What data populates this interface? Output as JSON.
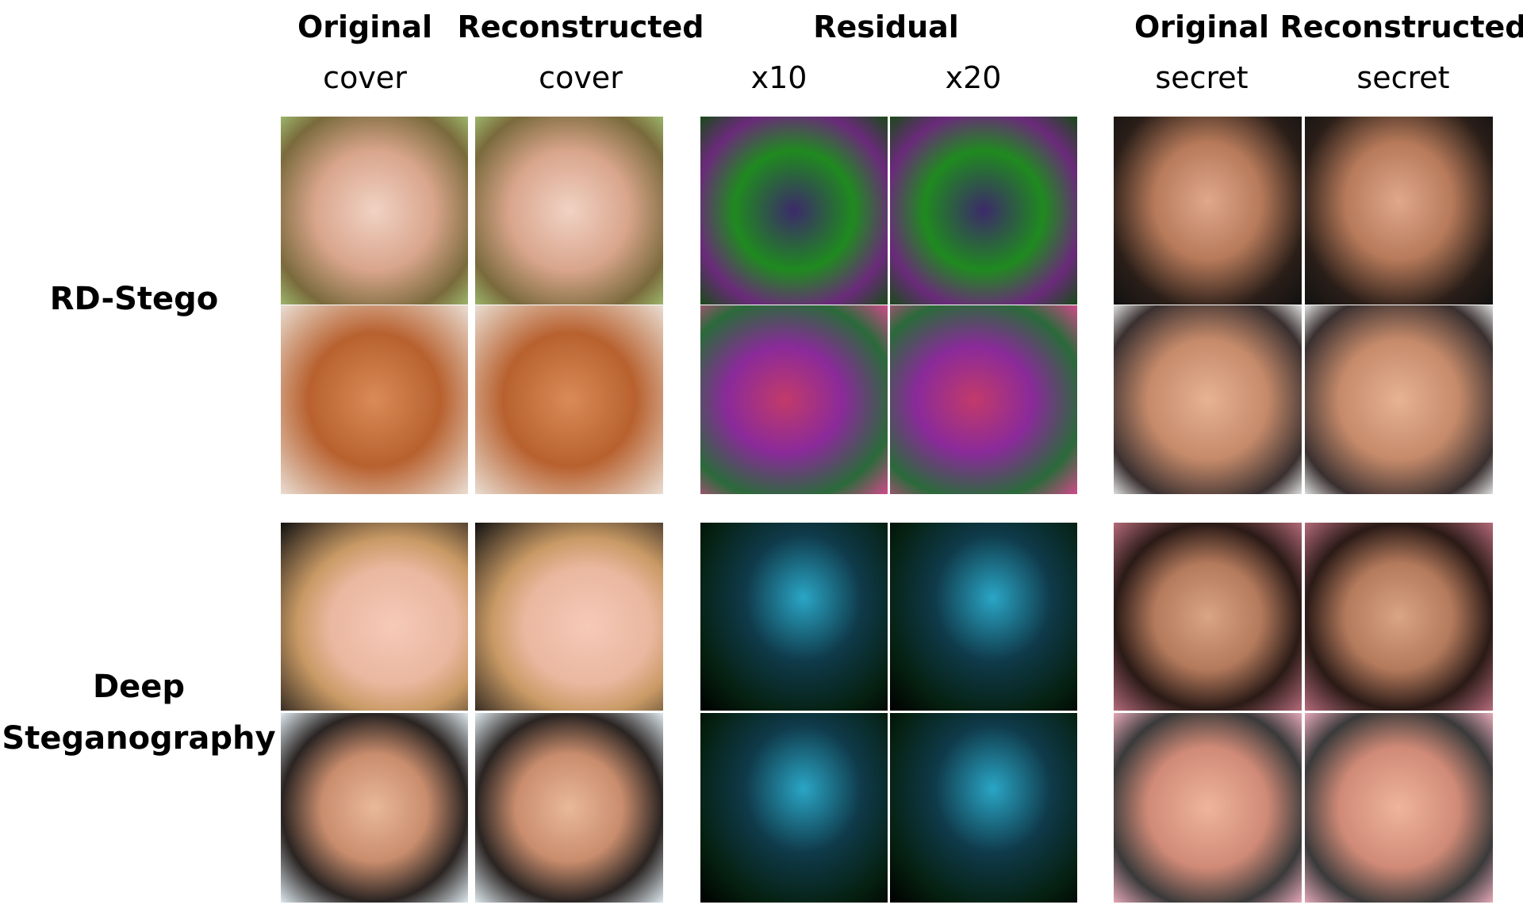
{
  "residual_title": "Residual",
  "columns": [
    {
      "title": "Original",
      "subtitle": "cover"
    },
    {
      "title": "Reconstructed",
      "subtitle": "cover"
    },
    {
      "subtitle": "x10"
    },
    {
      "subtitle": "x20"
    },
    {
      "title": "Original",
      "subtitle": "secret"
    },
    {
      "title": "Reconstructed",
      "subtitle": "secret"
    }
  ],
  "rows": [
    {
      "label_lines": [
        "RD-Stego"
      ]
    },
    {
      "label_lines": [
        "Deep",
        "Steganography"
      ]
    }
  ]
}
